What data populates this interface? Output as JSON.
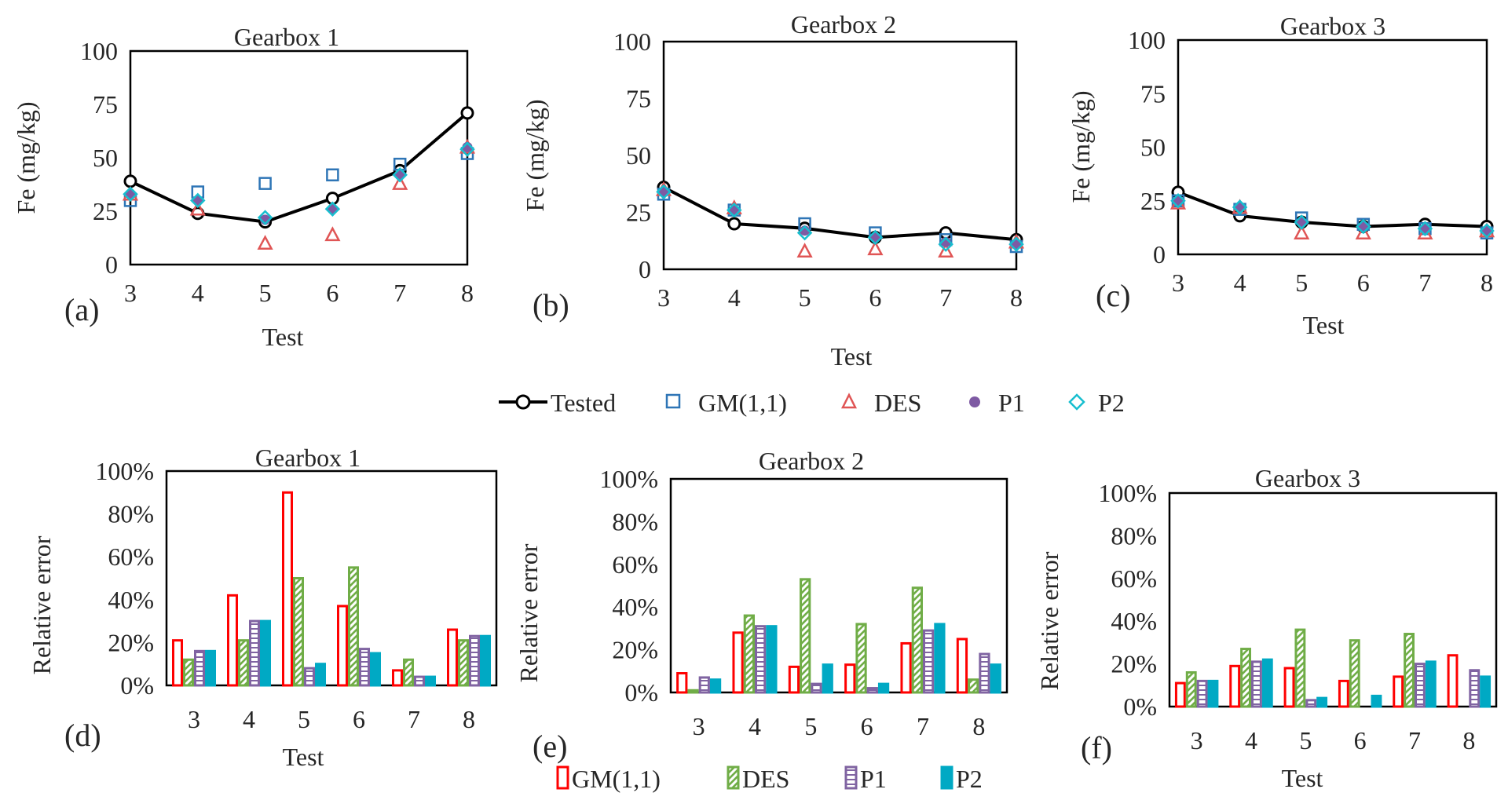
{
  "colors": {
    "tested": "#000000",
    "gm": "#2e75b6",
    "des": "#e05555",
    "p1": "#7e5aa3",
    "p2": "#17becf",
    "bar_gm": "#ff0000",
    "bar_des": "#70ad47",
    "bar_p1": "#8064a2",
    "bar_p2": "#00a9c4"
  },
  "line_legend": {
    "tested": "Tested",
    "gm": "GM(1,1)",
    "des": "DES",
    "p1": "P1",
    "p2": "P2"
  },
  "bar_legend": {
    "gm": "GM(1,1)",
    "des": "DES",
    "p1": "P1",
    "p2": "P2"
  },
  "chart_data": [
    {
      "id": "a",
      "panel_label": "(a)",
      "type": "line",
      "title": "Gearbox 1",
      "xlabel": "Test",
      "ylabel": "Fe (mg/kg)",
      "x": [
        "3",
        "4",
        "5",
        "6",
        "7",
        "8"
      ],
      "ylim": [
        0,
        100
      ],
      "yticks": [
        "0",
        "25",
        "50",
        "75",
        "100"
      ],
      "series": [
        {
          "name": "Tested",
          "values": [
            39,
            24,
            20,
            31,
            44,
            71
          ]
        },
        {
          "name": "GM(1,1)",
          "values": [
            30,
            34,
            38,
            42,
            47,
            52
          ]
        },
        {
          "name": "DES",
          "values": [
            33,
            26,
            10,
            14,
            38,
            55
          ]
        },
        {
          "name": "P1",
          "values": [
            33,
            30,
            21,
            26,
            42,
            55
          ]
        },
        {
          "name": "P2",
          "values": [
            33,
            30,
            22,
            26,
            42,
            54
          ]
        }
      ]
    },
    {
      "id": "b",
      "panel_label": "(b)",
      "type": "line",
      "title": "Gearbox 2",
      "xlabel": "Test",
      "ylabel": "Fe (mg/kg)",
      "x": [
        "3",
        "4",
        "5",
        "6",
        "7",
        "8"
      ],
      "ylim": [
        0,
        100
      ],
      "yticks": [
        "0",
        "25",
        "50",
        "75",
        "100"
      ],
      "series": [
        {
          "name": "Tested",
          "values": [
            36,
            20,
            18,
            14,
            16,
            13
          ]
        },
        {
          "name": "GM(1,1)",
          "values": [
            33,
            26,
            20,
            16,
            13,
            10
          ]
        },
        {
          "name": "DES",
          "values": [
            35,
            27,
            8,
            9,
            8,
            12
          ]
        },
        {
          "name": "P1",
          "values": [
            34,
            26,
            17,
            14,
            12,
            11
          ]
        },
        {
          "name": "P2",
          "values": [
            34,
            26,
            16,
            14,
            11,
            11
          ]
        }
      ]
    },
    {
      "id": "c",
      "panel_label": "(c)",
      "type": "line",
      "title": "Gearbox 3",
      "xlabel": "Test",
      "ylabel": "Fe (mg/kg)",
      "x": [
        "3",
        "4",
        "5",
        "6",
        "7",
        "8"
      ],
      "ylim": [
        0,
        100
      ],
      "yticks": [
        "0",
        "25",
        "50",
        "75",
        "100"
      ],
      "series": [
        {
          "name": "Tested",
          "values": [
            29,
            18,
            15,
            13,
            14,
            13
          ]
        },
        {
          "name": "GM(1,1)",
          "values": [
            25,
            21,
            17,
            14,
            12,
            10
          ]
        },
        {
          "name": "DES",
          "values": [
            24,
            22,
            10,
            10,
            10,
            11
          ]
        },
        {
          "name": "P1",
          "values": [
            25,
            22,
            15,
            13,
            12,
            11
          ]
        },
        {
          "name": "P2",
          "values": [
            25,
            22,
            15,
            13,
            12,
            11
          ]
        }
      ]
    },
    {
      "id": "d",
      "panel_label": "(d)",
      "type": "bar",
      "title": "Gearbox 1",
      "xlabel": "Test",
      "ylabel": "Relative error",
      "categories": [
        "3",
        "4",
        "5",
        "6",
        "7",
        "8"
      ],
      "ylim": [
        0,
        100
      ],
      "yticks": [
        "0%",
        "20%",
        "40%",
        "60%",
        "80%",
        "100%"
      ],
      "series": [
        {
          "name": "GM(1,1)",
          "values": [
            21,
            42,
            90,
            37,
            7,
            26
          ]
        },
        {
          "name": "DES",
          "values": [
            12,
            21,
            50,
            55,
            12,
            21
          ]
        },
        {
          "name": "P1",
          "values": [
            16,
            30,
            8,
            17,
            4,
            23
          ]
        },
        {
          "name": "P2",
          "values": [
            16,
            30,
            10,
            15,
            4,
            23
          ]
        }
      ]
    },
    {
      "id": "e",
      "panel_label": "(e)",
      "type": "bar",
      "title": "Gearbox 2",
      "xlabel": "",
      "ylabel": "Relative error",
      "categories": [
        "3",
        "4",
        "5",
        "6",
        "7",
        "8"
      ],
      "ylim": [
        0,
        100
      ],
      "yticks": [
        "0%",
        "20%",
        "40%",
        "60%",
        "80%",
        "100%"
      ],
      "series": [
        {
          "name": "GM(1,1)",
          "values": [
            9,
            28,
            12,
            13,
            23,
            25
          ]
        },
        {
          "name": "DES",
          "values": [
            1,
            36,
            53,
            32,
            49,
            6
          ]
        },
        {
          "name": "P1",
          "values": [
            7,
            31,
            4,
            2,
            29,
            18
          ]
        },
        {
          "name": "P2",
          "values": [
            6,
            31,
            13,
            4,
            32,
            13
          ]
        }
      ]
    },
    {
      "id": "f",
      "panel_label": "(f)",
      "type": "bar",
      "title": "Gearbox 3",
      "xlabel": "Test",
      "ylabel": "Relative error",
      "categories": [
        "3",
        "4",
        "5",
        "6",
        "7",
        "8"
      ],
      "ylim": [
        0,
        100
      ],
      "yticks": [
        "0%",
        "20%",
        "40%",
        "60%",
        "80%",
        "100%"
      ],
      "series": [
        {
          "name": "GM(1,1)",
          "values": [
            11,
            19,
            18,
            12,
            14,
            24
          ]
        },
        {
          "name": "DES",
          "values": [
            16,
            27,
            36,
            31,
            34,
            0
          ]
        },
        {
          "name": "P1",
          "values": [
            12,
            21,
            3,
            0,
            20,
            17
          ]
        },
        {
          "name": "P2",
          "values": [
            12,
            22,
            4,
            5,
            21,
            14
          ]
        }
      ]
    }
  ]
}
